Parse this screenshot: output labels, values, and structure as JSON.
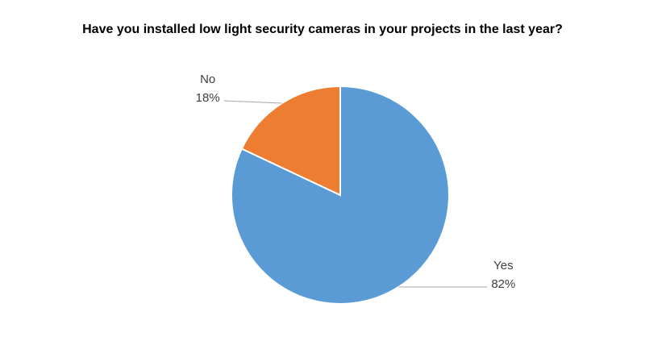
{
  "chart_data": {
    "type": "pie",
    "title": "Have you installed low light security cameras in your projects in the last year?",
    "categories": [
      "Yes",
      "No"
    ],
    "values": [
      82,
      18
    ],
    "value_labels": [
      "82%",
      "18%"
    ],
    "colors": [
      "#5b9bd5",
      "#ed7d31"
    ]
  }
}
